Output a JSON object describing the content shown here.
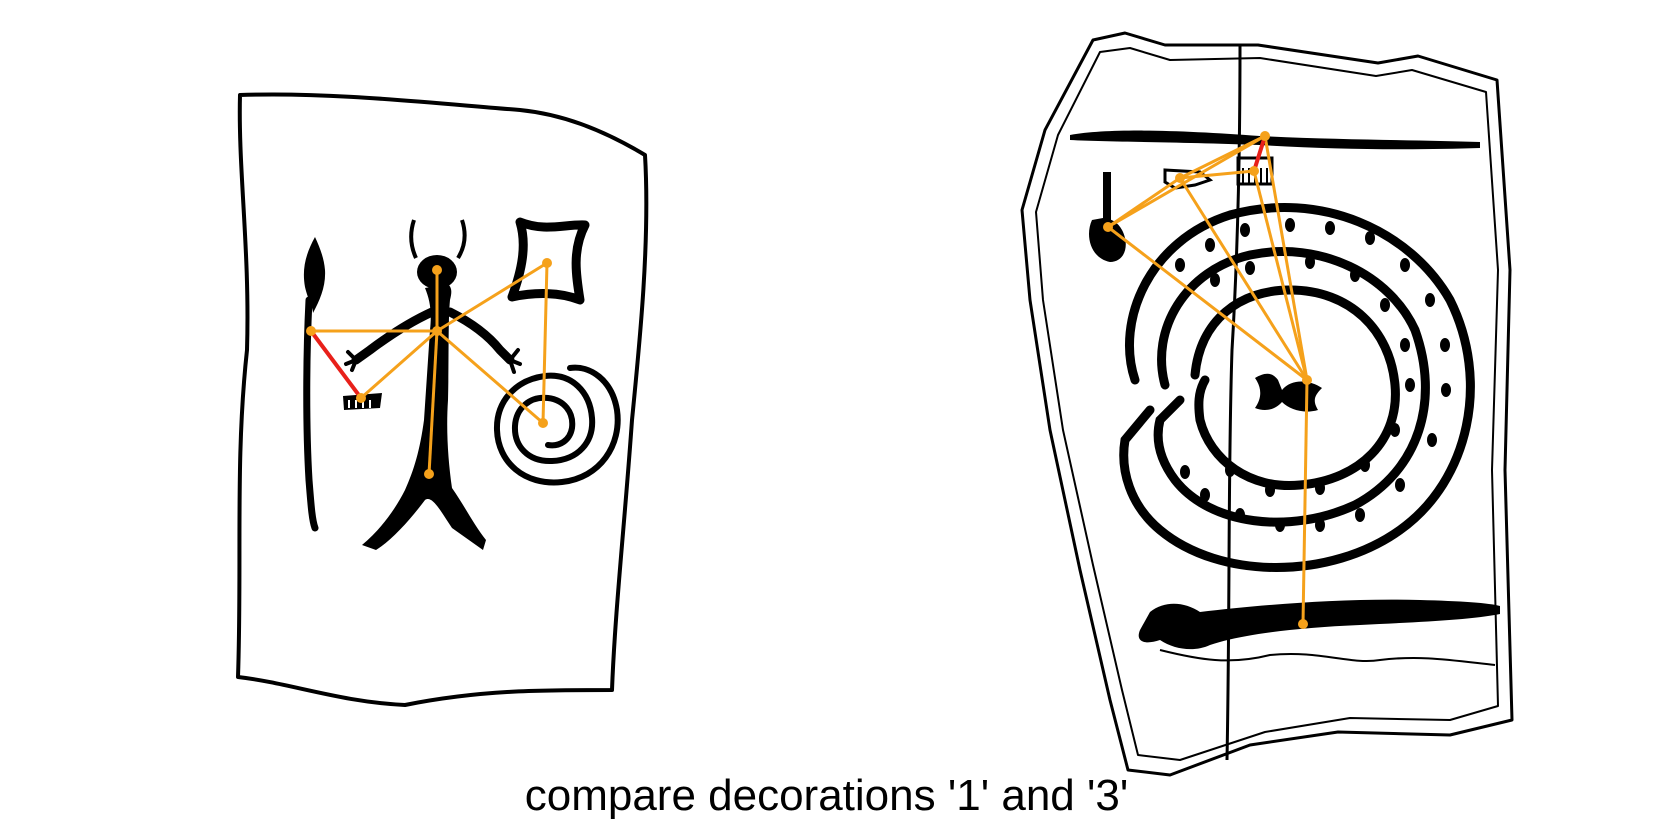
{
  "caption": "compare decorations '1' and '3'",
  "colors": {
    "ink": "#000000",
    "graph_edge": "#F5A11B",
    "graph_node": "#F5A11B",
    "highlight_edge": "#E8201A",
    "background": "#FFFFFF"
  },
  "panels": [
    {
      "name": "decoration-1",
      "motifs": [
        "spear",
        "horned-figure",
        "square-motif",
        "spiral-shield",
        "small-object"
      ]
    },
    {
      "name": "decoration-3",
      "motifs": [
        "mirror",
        "comb",
        "fibula",
        "concentric-circles",
        "central-bar",
        "lower-spear"
      ]
    }
  ]
}
